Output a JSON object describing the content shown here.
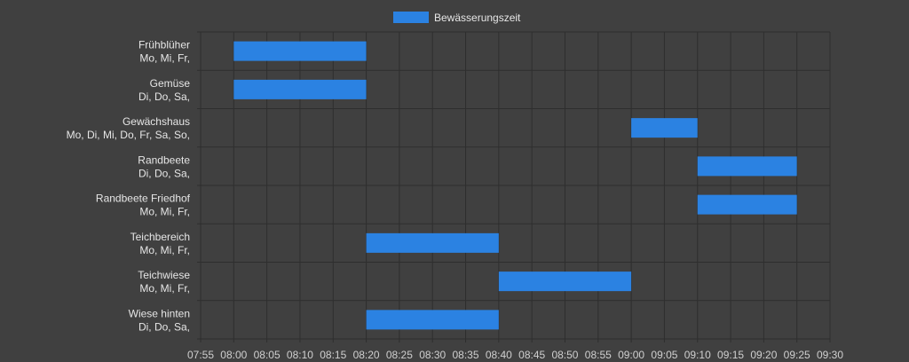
{
  "colors": {
    "background": "#404040",
    "bar": "#2b82e2",
    "grid": "#2e2e2e",
    "text": "#e6e6e6",
    "axis_text": "#cfcfcf"
  },
  "chart_data": {
    "type": "bar",
    "orientation": "horizontal-timeline",
    "legend": {
      "position": "top-center",
      "entries": [
        {
          "label": "Bewässerungszeit",
          "color": "#2b82e2"
        }
      ]
    },
    "grid": true,
    "x_axis": {
      "type": "time",
      "range": [
        "07:55",
        "09:30"
      ],
      "tick_labels": [
        "07:55",
        "08:00",
        "08:05",
        "08:10",
        "08:15",
        "08:20",
        "08:25",
        "08:30",
        "08:35",
        "08:40",
        "08:45",
        "08:50",
        "08:55",
        "09:00",
        "09:05",
        "09:10",
        "09:15",
        "09:20",
        "09:25",
        "09:30"
      ]
    },
    "rows": [
      {
        "name": "Frühblüher",
        "days": "Mo, Mi, Fr,",
        "start": "08:00",
        "end": "08:20"
      },
      {
        "name": "Gemüse",
        "days": "Di, Do, Sa,",
        "start": "08:00",
        "end": "08:20"
      },
      {
        "name": "Gewächshaus",
        "days": "Mo, Di, Mi, Do, Fr, Sa, So,",
        "start": "09:00",
        "end": "09:10"
      },
      {
        "name": "Randbeete",
        "days": "Di, Do, Sa,",
        "start": "09:10",
        "end": "09:25"
      },
      {
        "name": "Randbeete Friedhof",
        "days": "Mo, Mi, Fr,",
        "start": "09:10",
        "end": "09:25"
      },
      {
        "name": "Teichbereich",
        "days": "Mo, Mi, Fr,",
        "start": "08:20",
        "end": "08:40"
      },
      {
        "name": "Teichwiese",
        "days": "Mo, Mi, Fr,",
        "start": "08:40",
        "end": "09:00"
      },
      {
        "name": "Wiese hinten",
        "days": "Di, Do, Sa,",
        "start": "08:20",
        "end": "08:40"
      }
    ]
  }
}
